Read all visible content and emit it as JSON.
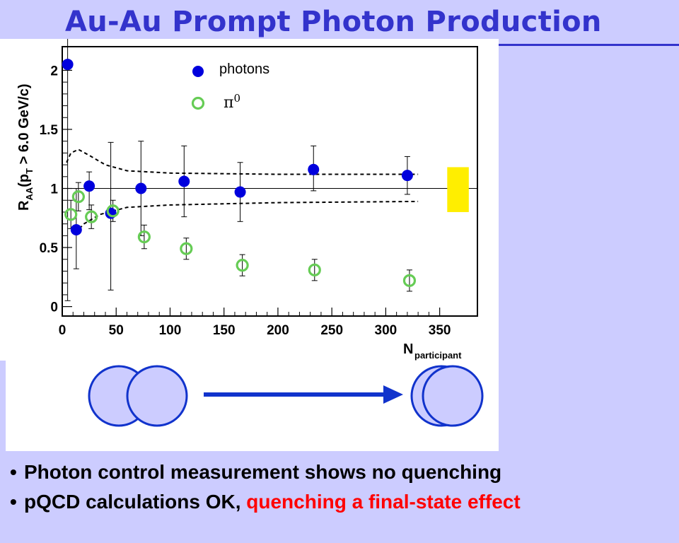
{
  "slide": {
    "title": "Au-Au Prompt Photon Production",
    "bullets": [
      {
        "plain": "Photon control measurement shows no quenching",
        "highlight": ""
      },
      {
        "plain": "pQCD calculations OK, ",
        "highlight": "quenching a final-state effect"
      }
    ],
    "colors": {
      "title": "#3333cc",
      "highlight": "#ff0000",
      "background": "#ccccff"
    }
  },
  "chart_data": {
    "type": "scatter",
    "title": "",
    "xlabel": "N",
    "xlabel_sub": "participant",
    "ylabel": "R",
    "ylabel_sub": "AA",
    "ylabel_rest": "(p",
    "ylabel_rest_sub": "T",
    "ylabel_tail": " > 6.0 GeV/c)",
    "xlim": [
      0,
      385
    ],
    "ylim": [
      -0.08,
      2.2
    ],
    "xticks": [
      0,
      50,
      100,
      150,
      200,
      250,
      300,
      350
    ],
    "yticks": [
      0,
      0.5,
      1,
      1.5,
      2
    ],
    "ytick_labels": [
      "0",
      "0.5",
      "1",
      "1.5",
      "2"
    ],
    "reference_line": 1,
    "legend": {
      "placement": "top-center",
      "entries": [
        {
          "name": "photons",
          "marker": "filled-circle",
          "color": "#0000dd"
        },
        {
          "name": "π0",
          "marker": "open-circle",
          "color": "#66cc55"
        }
      ]
    },
    "series": [
      {
        "name": "photons",
        "color": "#0000dd",
        "marker": "filled",
        "points": [
          {
            "x": 5,
            "y": 2.05,
            "yerr_lo": 2.0,
            "yerr_hi": 0.3
          },
          {
            "x": 13,
            "y": 0.65,
            "yerr_lo": 0.33,
            "yerr_hi": 0.35
          },
          {
            "x": 25,
            "y": 1.02,
            "yerr_lo": 0.2,
            "yerr_hi": 0.12
          },
          {
            "x": 45,
            "y": 0.79,
            "yerr_lo": 0.65,
            "yerr_hi": 0.6
          },
          {
            "x": 73,
            "y": 1.0,
            "yerr_lo": 0.4,
            "yerr_hi": 0.4
          },
          {
            "x": 113,
            "y": 1.06,
            "yerr_lo": 0.3,
            "yerr_hi": 0.3
          },
          {
            "x": 165,
            "y": 0.97,
            "yerr_lo": 0.25,
            "yerr_hi": 0.25
          },
          {
            "x": 233,
            "y": 1.16,
            "yerr_lo": 0.18,
            "yerr_hi": 0.2
          },
          {
            "x": 320,
            "y": 1.11,
            "yerr_lo": 0.16,
            "yerr_hi": 0.16
          }
        ]
      },
      {
        "name": "π0",
        "color": "#66cc55",
        "marker": "open",
        "points": [
          {
            "x": 8,
            "y": 0.78,
            "yerr_lo": 0.12,
            "yerr_hi": 0.12
          },
          {
            "x": 15,
            "y": 0.93,
            "yerr_lo": 0.12,
            "yerr_hi": 0.12
          },
          {
            "x": 27,
            "y": 0.76,
            "yerr_lo": 0.1,
            "yerr_hi": 0.1
          },
          {
            "x": 47,
            "y": 0.81,
            "yerr_lo": 0.09,
            "yerr_hi": 0.09
          },
          {
            "x": 76,
            "y": 0.59,
            "yerr_lo": 0.1,
            "yerr_hi": 0.1
          },
          {
            "x": 115,
            "y": 0.49,
            "yerr_lo": 0.09,
            "yerr_hi": 0.09
          },
          {
            "x": 167,
            "y": 0.35,
            "yerr_lo": 0.09,
            "yerr_hi": 0.09
          },
          {
            "x": 234,
            "y": 0.31,
            "yerr_lo": 0.09,
            "yerr_hi": 0.09
          },
          {
            "x": 322,
            "y": 0.22,
            "yerr_lo": 0.09,
            "yerr_hi": 0.09
          }
        ]
      }
    ],
    "uncertainty_band": {
      "style": "dashed",
      "color": "#000000",
      "upper": [
        [
          4,
          1.22
        ],
        [
          8,
          1.3
        ],
        [
          15,
          1.33
        ],
        [
          25,
          1.28
        ],
        [
          40,
          1.2
        ],
        [
          60,
          1.15
        ],
        [
          100,
          1.13
        ],
        [
          200,
          1.12
        ],
        [
          330,
          1.12
        ]
      ],
      "lower": [
        [
          12,
          0.62
        ],
        [
          20,
          0.7
        ],
        [
          35,
          0.78
        ],
        [
          60,
          0.84
        ],
        [
          100,
          0.86
        ],
        [
          200,
          0.88
        ],
        [
          330,
          0.89
        ]
      ]
    },
    "normalization_box": {
      "x0": 357,
      "x1": 377,
      "y0": 0.8,
      "y1": 1.18,
      "color": "#ffee00"
    }
  },
  "diagram": {
    "arrow_color": "#1133cc",
    "circle_fill": "#ccccff",
    "circle_stroke": "#1133cc"
  }
}
